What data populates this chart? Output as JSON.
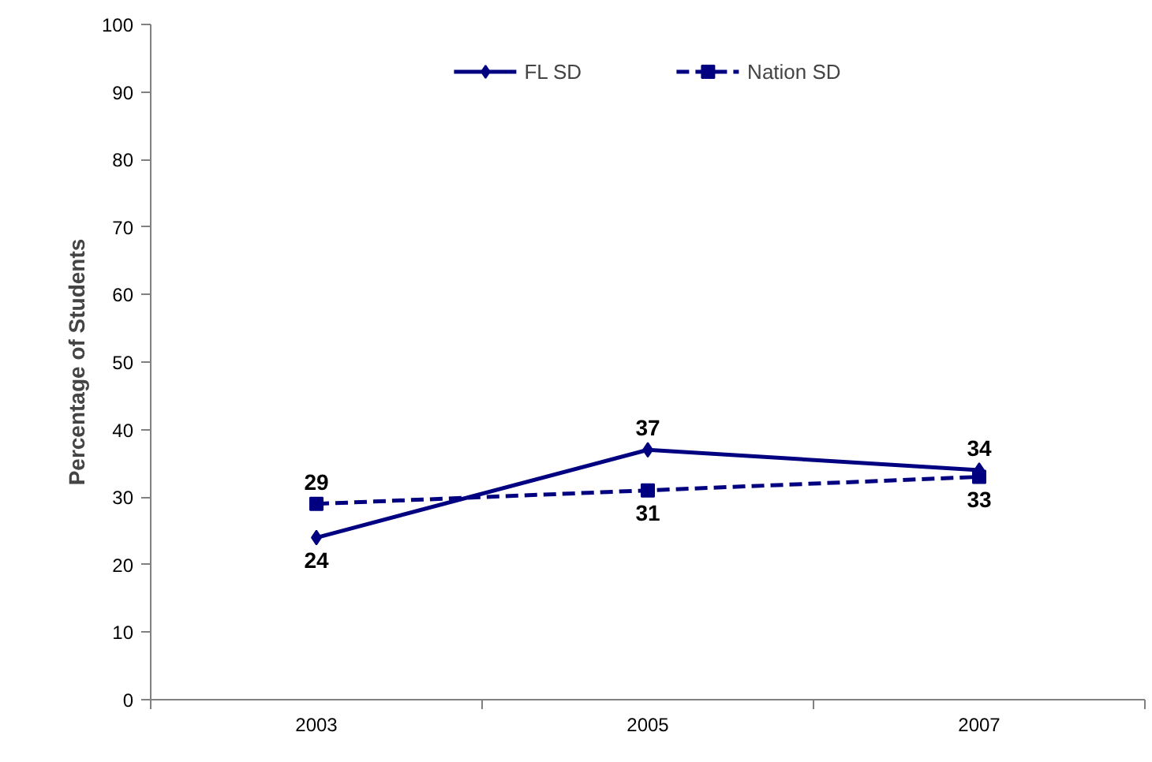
{
  "chart_data": {
    "type": "line",
    "ylabel": "Percentage of Students",
    "categories": [
      "2003",
      "2005",
      "2007"
    ],
    "series": [
      {
        "name": "FL SD",
        "color": "#000080",
        "values": [
          24,
          37,
          34
        ],
        "marker": "diamond",
        "line_style": "solid"
      },
      {
        "name": "Nation SD",
        "color": "#000080",
        "values": [
          29,
          31,
          33
        ],
        "marker": "square",
        "line_style": "dashed"
      }
    ],
    "ylim": [
      0,
      100
    ],
    "yticks": [
      0,
      10,
      20,
      30,
      40,
      50,
      60,
      70,
      80,
      90,
      100
    ],
    "grid": false,
    "legend": "top",
    "data_labels": true
  }
}
